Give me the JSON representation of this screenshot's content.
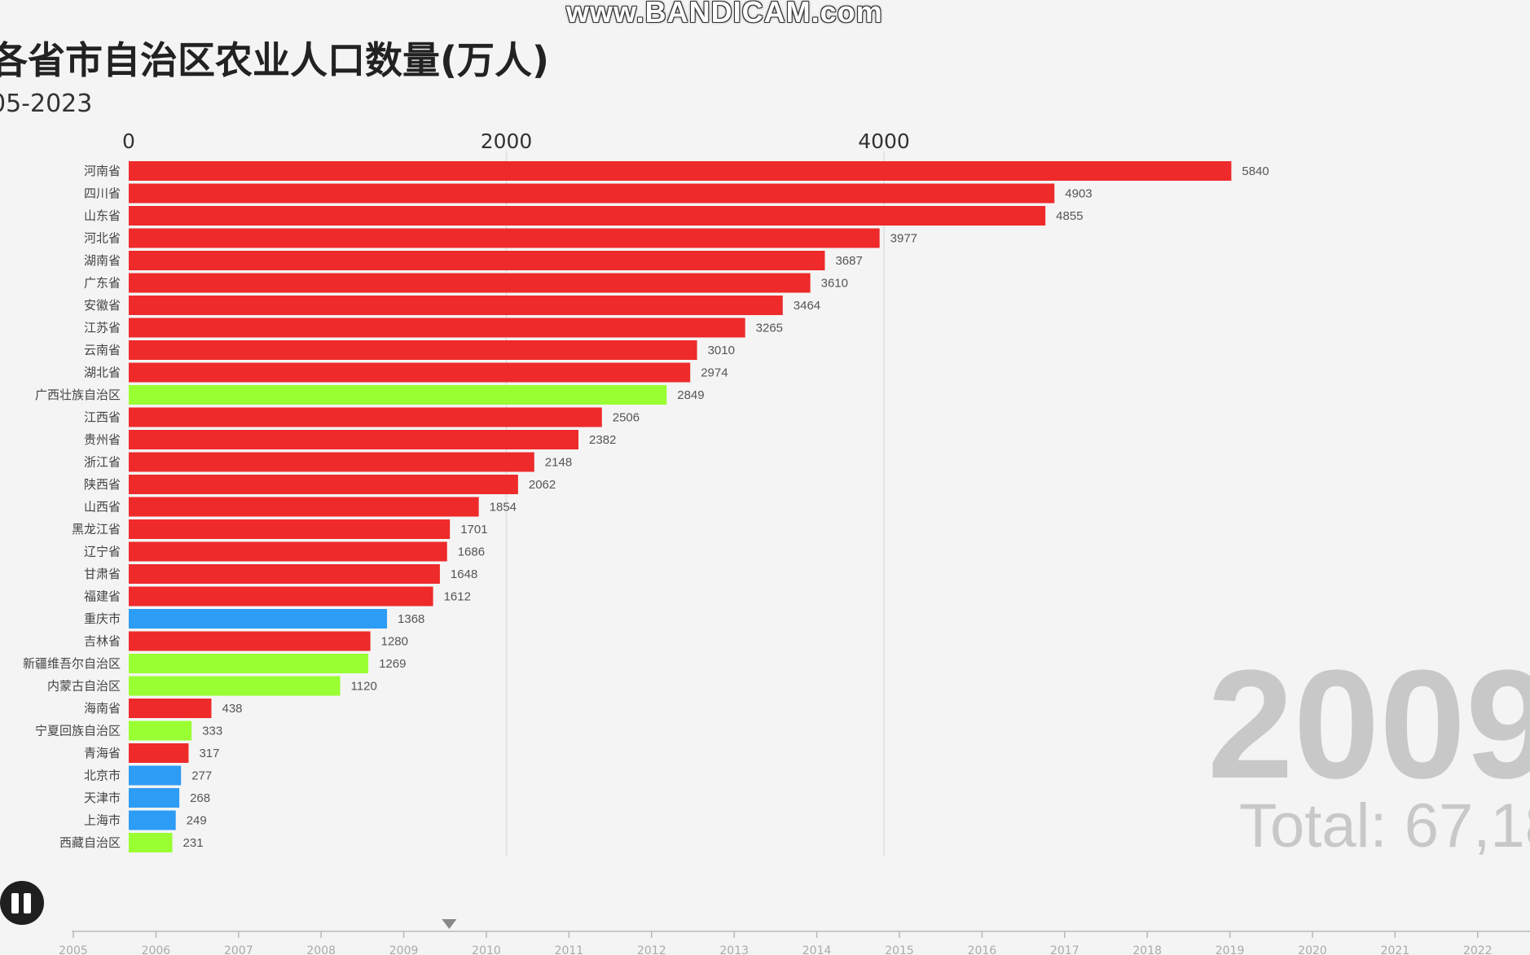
{
  "watermark": "www.BANDICAM.com",
  "title": "各省市自治区农业人口数量(万人)",
  "subtitle": "05-2023",
  "colors": {
    "province": "#ee2a2a",
    "autonomous_region": "#99ff33",
    "municipality": "#2d9cf5",
    "bar_label": "#555555",
    "grid": "#dddddd"
  },
  "chart_data": {
    "type": "bar",
    "orientation": "horizontal",
    "title": "各省市自治区农业人口数量(万人)",
    "xlim": [
      0,
      5840
    ],
    "x_ticks": [
      0,
      2000,
      4000
    ],
    "grid": true,
    "categories": [
      "河南省",
      "四川省",
      "山东省",
      "河北省",
      "湖南省",
      "广东省",
      "安徽省",
      "江苏省",
      "云南省",
      "湖北省",
      "广西壮族自治区",
      "江西省",
      "贵州省",
      "浙江省",
      "陕西省",
      "山西省",
      "黑龙江省",
      "辽宁省",
      "甘肃省",
      "福建省",
      "重庆市",
      "吉林省",
      "新疆维吾尔自治区",
      "内蒙古自治区",
      "海南省",
      "宁夏回族自治区",
      "青海省",
      "北京市",
      "天津市",
      "上海市",
      "西藏自治区"
    ],
    "values": [
      5840,
      4903,
      4855,
      3977,
      3687,
      3610,
      3464,
      3265,
      3010,
      2974,
      2849,
      2506,
      2382,
      2148,
      2062,
      1854,
      1701,
      1686,
      1648,
      1612,
      1368,
      1280,
      1269,
      1120,
      438,
      333,
      317,
      277,
      268,
      249,
      231
    ],
    "value_labels": [
      "5840",
      "4903",
      "4855",
      "3977",
      "3687",
      "3610",
      "3464",
      "3265",
      "3010",
      "2974",
      "2849",
      "2506",
      "2382",
      "2148",
      "2062",
      "1854",
      "1701",
      "1686",
      "1648",
      "1612",
      "1368",
      "1280",
      "1269",
      "1120",
      "438",
      "333",
      "317",
      "277",
      "268",
      "249",
      "231"
    ],
    "groups": [
      "province",
      "province",
      "province",
      "province",
      "province",
      "province",
      "province",
      "province",
      "province",
      "province",
      "autonomous_region",
      "province",
      "province",
      "province",
      "province",
      "province",
      "province",
      "province",
      "province",
      "province",
      "municipality",
      "province",
      "autonomous_region",
      "autonomous_region",
      "province",
      "autonomous_region",
      "province",
      "municipality",
      "municipality",
      "municipality",
      "autonomous_region"
    ]
  },
  "current_year": "2009",
  "total_label": "Total: 67,18",
  "timeline": {
    "years": [
      "2005",
      "2006",
      "2007",
      "2008",
      "2009",
      "2010",
      "2011",
      "2012",
      "2013",
      "2014",
      "2015",
      "2016",
      "2017",
      "2018",
      "2019",
      "2020",
      "2021",
      "2022"
    ],
    "position_year": 2009.55
  },
  "controls": {
    "pause_icon": "pause-icon"
  }
}
